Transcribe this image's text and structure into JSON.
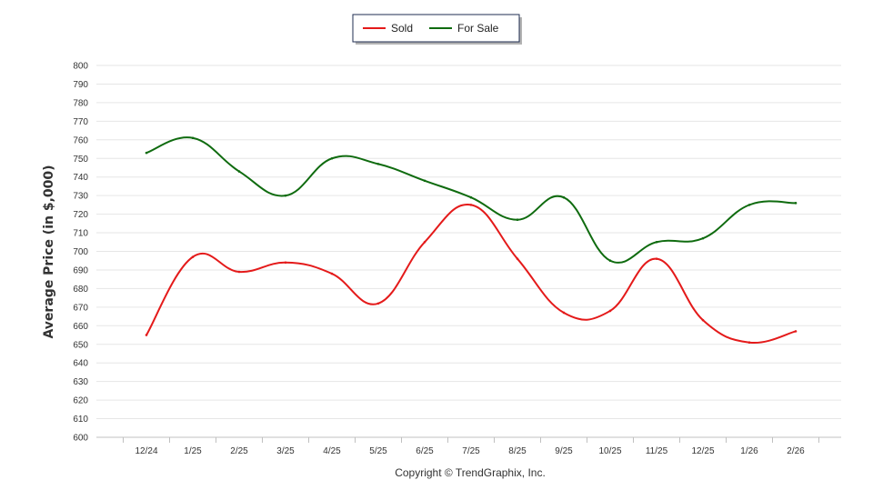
{
  "chart_data": {
    "type": "line",
    "categories": [
      "12/24",
      "1/25",
      "2/25",
      "3/25",
      "4/25",
      "5/25",
      "6/25",
      "7/25",
      "8/25",
      "9/25",
      "10/25",
      "11/25",
      "12/25",
      "1/26",
      "2/26"
    ],
    "series": [
      {
        "name": "Sold",
        "color": "#e41a1a",
        "values": [
          655,
          697,
          689,
          694,
          688,
          672,
          705,
          725,
          696,
          667,
          668,
          696,
          663,
          651,
          657
        ]
      },
      {
        "name": "For Sale",
        "color": "#0f6b0f",
        "values": [
          753,
          761,
          743,
          730,
          750,
          747,
          738,
          729,
          717,
          729,
          695,
          705,
          707,
          725,
          726
        ]
      }
    ],
    "title": "",
    "xlabel": "",
    "ylabel": "Average Price (in $,000)",
    "ylim": [
      600,
      800
    ],
    "yticks": [
      600,
      610,
      620,
      630,
      640,
      650,
      660,
      670,
      680,
      690,
      700,
      710,
      720,
      730,
      740,
      750,
      760,
      770,
      780,
      790,
      800
    ],
    "grid": true,
    "legend": "top-center"
  },
  "credit": "Copyright © TrendGraphix, Inc."
}
